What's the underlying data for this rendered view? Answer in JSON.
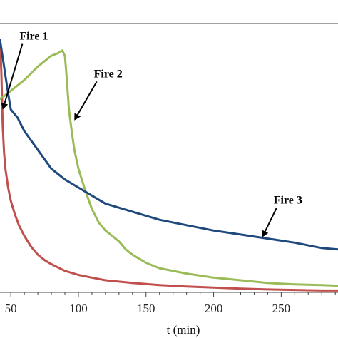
{
  "chart_data": {
    "type": "line",
    "xlabel": "t (min)",
    "ylabel": "",
    "xlim": [
      42,
      292
    ],
    "ylim": [
      0,
      1
    ],
    "x_ticks": [
      "50",
      "100",
      "150",
      "200",
      "250"
    ],
    "grid": false,
    "legend": "none",
    "series": [
      {
        "color": "#c0504d",
        "x": [
          42,
          43,
          44,
          45,
          46,
          48,
          50,
          53,
          56,
          60,
          65,
          70,
          75,
          80,
          90,
          100,
          110,
          120,
          140,
          160,
          180,
          200,
          220,
          240,
          260,
          280,
          292
        ],
        "y": [
          0.94,
          0.82,
          0.62,
          0.52,
          0.46,
          0.39,
          0.34,
          0.29,
          0.25,
          0.21,
          0.17,
          0.14,
          0.12,
          0.105,
          0.08,
          0.065,
          0.055,
          0.045,
          0.035,
          0.027,
          0.022,
          0.018,
          0.014,
          0.011,
          0.009,
          0.007,
          0.007
        ]
      },
      {
        "color": "#9bbb59",
        "x": [
          42,
          45,
          50,
          60,
          70,
          80,
          85,
          88,
          90,
          91,
          93,
          95,
          97,
          100,
          105,
          110,
          115,
          120,
          130,
          135,
          140,
          150,
          160,
          180,
          200,
          220,
          240,
          260,
          280,
          292
        ],
        "y": [
          0.72,
          0.73,
          0.75,
          0.79,
          0.84,
          0.88,
          0.89,
          0.9,
          0.88,
          0.82,
          0.68,
          0.6,
          0.53,
          0.46,
          0.38,
          0.31,
          0.26,
          0.23,
          0.19,
          0.16,
          0.14,
          0.11,
          0.09,
          0.07,
          0.055,
          0.045,
          0.035,
          0.03,
          0.027,
          0.025
        ]
      },
      {
        "color": "#1f497d",
        "x": [
          42,
          45,
          48,
          50,
          55,
          60,
          70,
          80,
          90,
          100,
          110,
          120,
          140,
          160,
          180,
          200,
          220,
          240,
          260,
          280,
          292
        ],
        "y": [
          0.94,
          0.84,
          0.74,
          0.68,
          0.65,
          0.6,
          0.53,
          0.46,
          0.42,
          0.39,
          0.36,
          0.33,
          0.3,
          0.27,
          0.25,
          0.23,
          0.215,
          0.2,
          0.185,
          0.165,
          0.16
        ]
      }
    ],
    "annotations": [
      {
        "label": "Fire 1",
        "text_x": 67,
        "text_y": 0.94,
        "arrow_to_x": 44,
        "arrow_to_y": 0.68
      },
      {
        "label": "Fire 2",
        "text_x": 122,
        "text_y": 0.8,
        "arrow_to_x": 97,
        "arrow_to_y": 0.64
      },
      {
        "label": "Fire 3",
        "text_x": 255,
        "text_y": 0.33,
        "arrow_to_x": 236,
        "arrow_to_y": 0.205
      }
    ]
  }
}
